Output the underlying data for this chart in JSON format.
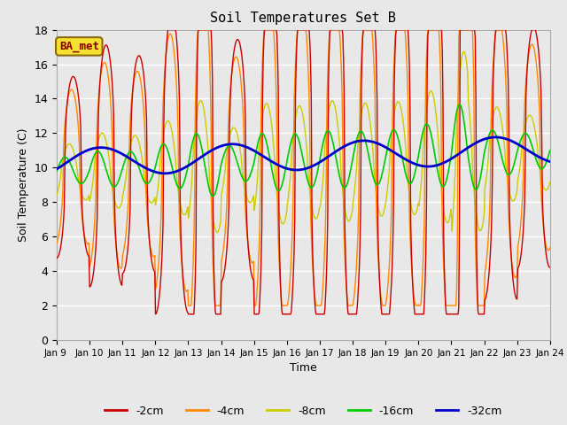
{
  "title": "Soil Temperatures Set B",
  "xlabel": "Time",
  "ylabel": "Soil Temperature (C)",
  "annotation": "BA_met",
  "ylim": [
    0,
    18
  ],
  "yticks": [
    0,
    2,
    4,
    6,
    8,
    10,
    12,
    14,
    16,
    18
  ],
  "xtick_labels": [
    "Jan 9 ",
    "Jan 10",
    "Jan 11",
    "Jan 12",
    "Jan 13",
    "Jan 14",
    "Jan 15",
    "Jan 16",
    "Jan 17",
    "Jan 18",
    "Jan 19",
    "Jan 20",
    "Jan 21",
    "Jan 22",
    "Jan 23",
    "Jan 24"
  ],
  "colors": {
    "-2cm": "#cc0000",
    "-4cm": "#ff8800",
    "-8cm": "#cccc00",
    "-16cm": "#00cc00",
    "-32cm": "#0000cc"
  },
  "legend_labels": [
    "-2cm",
    "-4cm",
    "-8cm",
    "-16cm",
    "-32cm"
  ],
  "fig_facecolor": "#e8e8e8",
  "axes_facecolor": "#e8e8e8",
  "title_fontsize": 11,
  "n_days": 15,
  "n_pts": 720
}
